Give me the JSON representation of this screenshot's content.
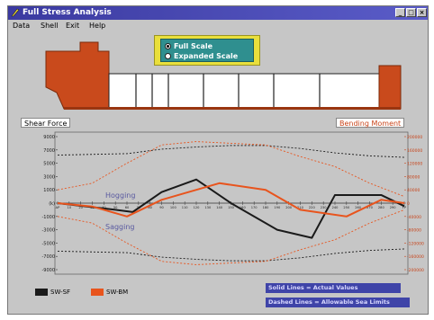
{
  "window": {
    "title": "Full Stress Analysis",
    "controls": [
      "_",
      "□",
      "×"
    ]
  },
  "menu": [
    "Data",
    "Shell",
    "Exit",
    "Help"
  ],
  "scale": {
    "options": [
      {
        "label": "Full Scale",
        "selected": true
      },
      {
        "label": "Expanded Scale",
        "selected": false
      }
    ],
    "box_color": "#e9df3c",
    "inner_color": "#2f8f8f"
  },
  "ship": {
    "hull_color": "#c94a1c",
    "hold_count": 8
  },
  "panels": {
    "left_label": "Shear Force",
    "right_label": "Bending Moment"
  },
  "axis": {
    "left_ticks": [
      "9000",
      "7000",
      "5000",
      "3000",
      "1000",
      "(k)",
      "-1000",
      "-3000",
      "-5000",
      "-7000",
      "-9000"
    ],
    "right_ticks": [
      "200000",
      "160000",
      "120000",
      "80000",
      "40000",
      "0",
      "-40000",
      "-80000",
      "-120000",
      "-160000",
      "-200000"
    ],
    "frame_labels": [
      "AP",
      "10",
      "20",
      "30",
      "40",
      "50",
      "60",
      "70",
      "80",
      "90",
      "100",
      "110",
      "120",
      "130",
      "140",
      "150",
      "160",
      "170",
      "180",
      "190",
      "200",
      "210",
      "220",
      "230",
      "240",
      "250",
      "260",
      "270",
      "280",
      "290",
      "FP"
    ],
    "hogging_label": "Hogging",
    "sagging_label": "Sagging"
  },
  "chart_data": {
    "type": "line",
    "xlabel": "",
    "ylabel": "",
    "xlim": [
      0,
      30
    ],
    "series": [
      {
        "name": "SW-SF",
        "color": "#1a1a1a",
        "axis": "left",
        "x": [
          0,
          4.5,
          6.5,
          9,
          12,
          15,
          19,
          22,
          24,
          28,
          30
        ],
        "y": [
          0,
          -800,
          -1200,
          1500,
          3200,
          0,
          -3600,
          -4700,
          1100,
          1100,
          -400
        ]
      },
      {
        "name": "SW-BM",
        "color": "#e8541d",
        "axis": "right",
        "x": [
          0,
          3,
          6,
          9,
          12,
          14,
          18,
          21,
          25,
          28,
          30
        ],
        "y": [
          0,
          -10000,
          -40000,
          10000,
          40000,
          60000,
          40000,
          -20000,
          -40000,
          10000,
          0
        ]
      }
    ],
    "limit_series": [
      {
        "color": "#1a1a1a",
        "axis": "left",
        "x": [
          0,
          3,
          6,
          9,
          12,
          15,
          18,
          21,
          24,
          27,
          30
        ],
        "y": [
          6500,
          6600,
          6700,
          7300,
          7600,
          7800,
          7800,
          7400,
          6800,
          6400,
          6200
        ]
      },
      {
        "color": "#1a1a1a",
        "axis": "left",
        "x": [
          0,
          3,
          6,
          9,
          12,
          15,
          18,
          21,
          24,
          27,
          30
        ],
        "y": [
          -6500,
          -6600,
          -6700,
          -7300,
          -7600,
          -7800,
          -7800,
          -7400,
          -6800,
          -6400,
          -6200
        ]
      },
      {
        "color": "#e8541d",
        "axis": "right",
        "x": [
          0,
          3,
          6,
          9,
          12,
          15,
          18,
          21,
          24,
          27,
          30
        ],
        "y": [
          40000,
          60000,
          120000,
          175000,
          185000,
          180000,
          175000,
          140000,
          110000,
          60000,
          20000
        ]
      },
      {
        "color": "#e8541d",
        "axis": "right",
        "x": [
          0,
          3,
          6,
          9,
          12,
          15,
          18,
          21,
          24,
          27,
          30
        ],
        "y": [
          -40000,
          -60000,
          -120000,
          -175000,
          -185000,
          -180000,
          -175000,
          -140000,
          -110000,
          -60000,
          -20000
        ]
      }
    ]
  },
  "legend": [
    {
      "label": "SW-SF",
      "color": "#1a1a1a"
    },
    {
      "label": "SW-BM",
      "color": "#e8541d"
    }
  ],
  "info": {
    "solid": "Solid Lines = Actual Values",
    "dashed": "Dashed Lines = Allowable Sea Limits"
  }
}
